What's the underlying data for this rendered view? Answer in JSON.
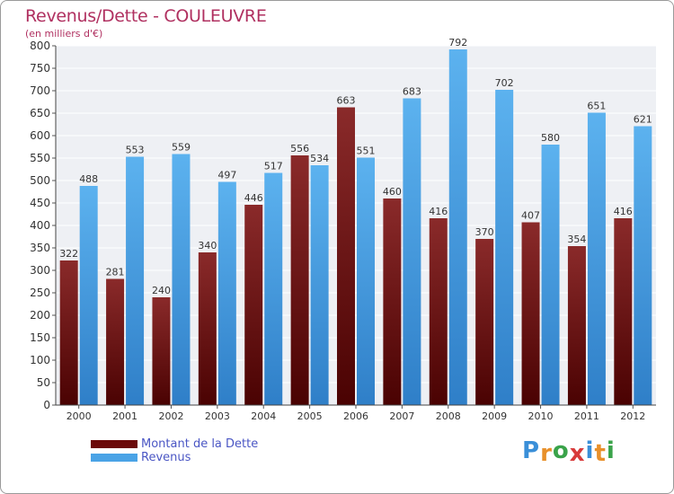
{
  "header": {
    "title": "Revenus/Dette - COULEUVRE",
    "subtitle": "(en milliers d'€)"
  },
  "chart_data": {
    "type": "bar",
    "title": "Revenus/Dette - COULEUVRE",
    "subtitle": "(en milliers d'€)",
    "xlabel": "",
    "ylabel": "",
    "ylim": [
      0,
      800
    ],
    "yticks": [
      0,
      50,
      100,
      150,
      200,
      250,
      300,
      350,
      400,
      450,
      500,
      550,
      600,
      650,
      700,
      750,
      800
    ],
    "grid": true,
    "categories": [
      "2000",
      "2001",
      "2002",
      "2003",
      "2004",
      "2005",
      "2006",
      "2007",
      "2008",
      "2009",
      "2010",
      "2011",
      "2012"
    ],
    "series": [
      {
        "name": "Montant de la Dette",
        "color": "#7a1414",
        "values": [
          322,
          281,
          240,
          340,
          446,
          556,
          663,
          460,
          416,
          370,
          407,
          354,
          416
        ]
      },
      {
        "name": "Revenus",
        "color": "#3d9be0",
        "values": [
          488,
          553,
          559,
          497,
          517,
          534,
          551,
          683,
          792,
          702,
          580,
          651,
          621
        ]
      }
    ],
    "legend_position": "bottom-left"
  },
  "legend": {
    "items": [
      {
        "label": "Montant de la Dette",
        "color": "#6b0a0a"
      },
      {
        "label": "Revenus",
        "color": "#4aa3e6"
      }
    ]
  },
  "logo": {
    "letters": [
      "P",
      "r",
      "o",
      "x",
      "i",
      "t",
      "i"
    ],
    "colors": [
      "#3a8fd8",
      "#e8902a",
      "#3aa34a",
      "#d83a3a",
      "#3a8fd8",
      "#e8902a",
      "#3aa34a"
    ]
  }
}
